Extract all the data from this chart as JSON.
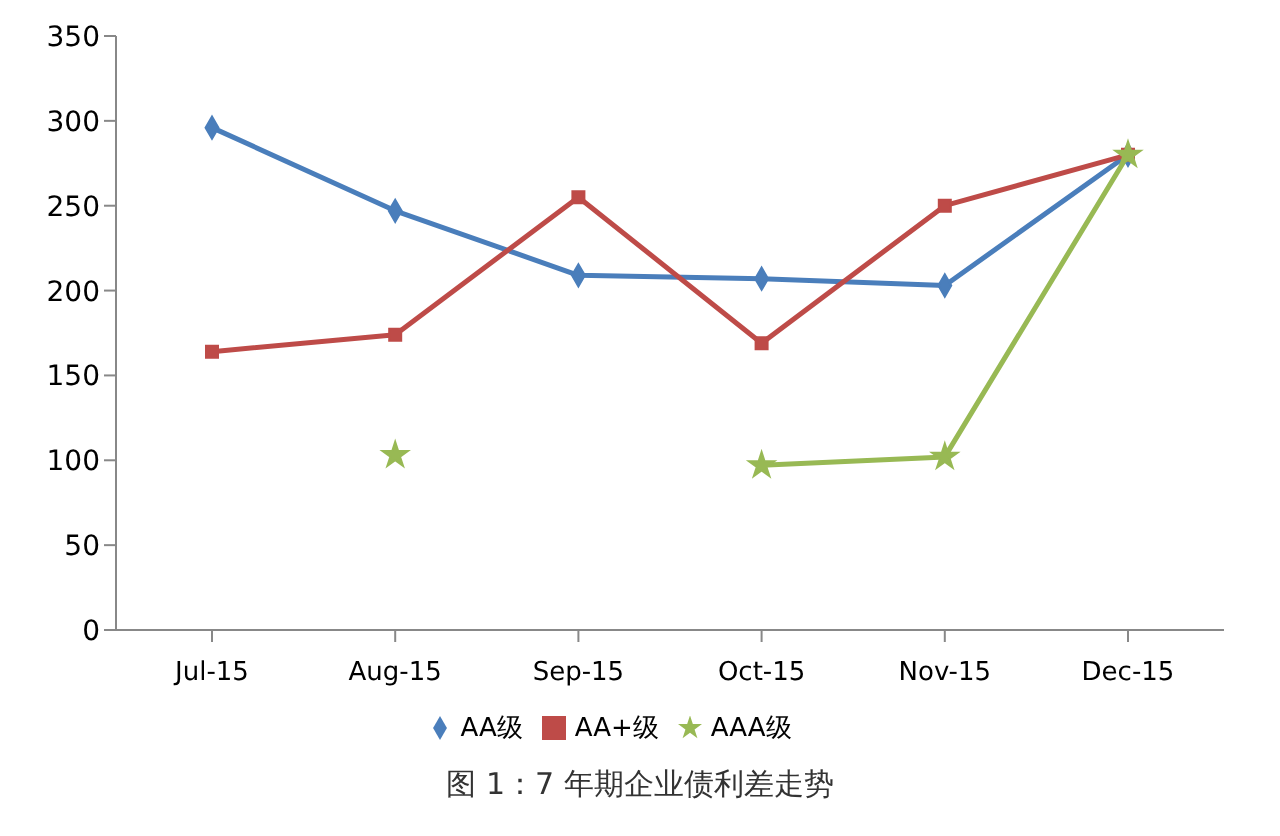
{
  "chart_data": {
    "type": "line",
    "categories": [
      "Jul-15",
      "Aug-15",
      "Sep-15",
      "Oct-15",
      "Nov-15",
      "Dec-15"
    ],
    "series": [
      {
        "name": "AA级",
        "color": "#4a7ebb",
        "marker": "diamond",
        "values": [
          296,
          247,
          209,
          207,
          203,
          280
        ]
      },
      {
        "name": "AA+级",
        "color": "#be4b48",
        "marker": "square",
        "values": [
          164,
          174,
          255,
          169,
          250,
          280
        ]
      },
      {
        "name": "AAA级",
        "color": "#98b954",
        "marker": "star",
        "values": [
          null,
          103,
          null,
          97,
          102,
          280
        ]
      }
    ],
    "ylim": [
      0,
      350
    ],
    "yticks": [
      0,
      50,
      100,
      150,
      200,
      250,
      300,
      350
    ],
    "grid": false,
    "legend": "bottom",
    "annotations": [
      "图 1：7 年期企业债利差走势"
    ]
  }
}
